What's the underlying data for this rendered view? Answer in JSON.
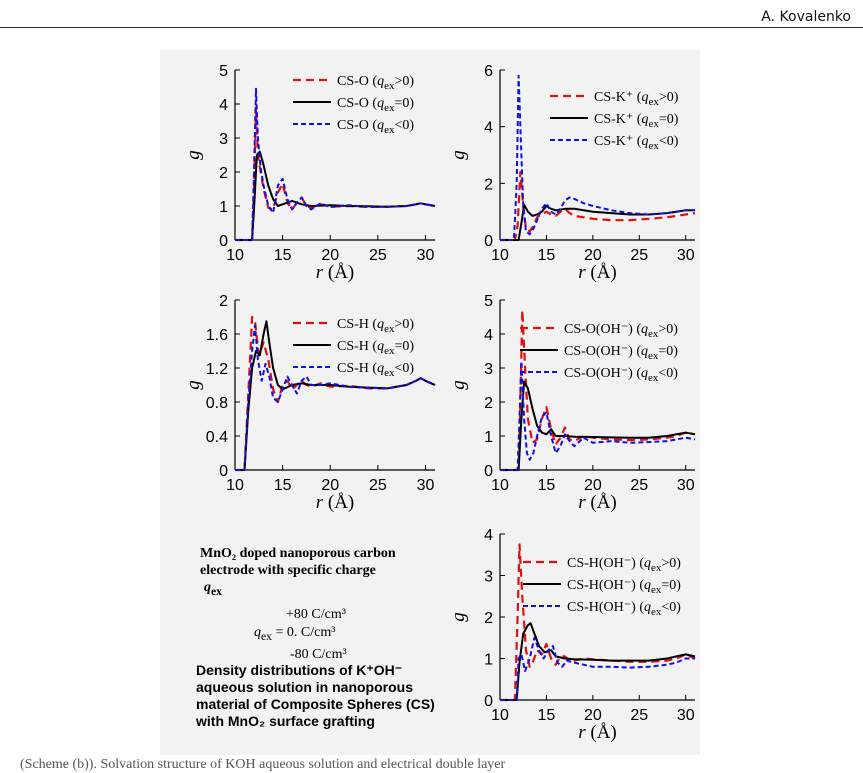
{
  "header": {
    "author": "A. Kovalenko"
  },
  "note": {
    "title_line1": "MnO₂ doped nanoporous carbon",
    "title_line2": "electrode with specific charge",
    "q_symbol": "q",
    "q_sub": "ex",
    "val_pos": "+80 C/cm³",
    "val_zero": "0. C/cm³",
    "val_neg": "-80 C/cm³",
    "q_eq": "=",
    "desc_line1": "Density distributions of K⁺OH⁻",
    "desc_line2": "aqueous solution in nanoporous",
    "desc_line3": "material of Composite Spheres (CS)",
    "desc_line4": "with MnO₂ surface grafting"
  },
  "caption": "(Scheme (b)). Solvation structure of KOH aqueous solution and electrical double layer",
  "colors": {
    "pos": "#e01010",
    "zero": "#000000",
    "neg": "#1010e0",
    "frame_bg": "#f2f2f2"
  },
  "chart_data": [
    {
      "type": "line",
      "xlabel": "r (Å)",
      "ylabel": "g",
      "xlim": [
        10,
        31
      ],
      "ylim": [
        0,
        5
      ],
      "xticks": [
        10,
        15,
        20,
        25,
        30
      ],
      "yticks": [
        0,
        1,
        2,
        3,
        4,
        5
      ],
      "series": [
        {
          "name": "CS-O (qex>0)",
          "label_main": "CS-O (",
          "label_q": "q",
          "label_sub": "ex",
          "label_end": ">0)",
          "style": "pos",
          "x": [
            10,
            11.8,
            12.0,
            12.2,
            12.4,
            12.7,
            13,
            13.5,
            14,
            14.5,
            15,
            15.5,
            16,
            16.5,
            17,
            17.5,
            18,
            19,
            20,
            22,
            24,
            26,
            28,
            29,
            29.5,
            30,
            31
          ],
          "y": [
            0,
            0,
            1.5,
            3.9,
            2.5,
            2.0,
            1.5,
            0.95,
            0.9,
            1.4,
            1.65,
            1.1,
            0.9,
            1.1,
            1.25,
            1.0,
            0.95,
            1.05,
            0.98,
            1.0,
            0.97,
            0.98,
            1.0,
            1.05,
            1.08,
            1.05,
            1.0
          ]
        },
        {
          "name": "CS-O (qex=0)",
          "label_main": "CS-O (",
          "label_q": "q",
          "label_sub": "ex",
          "label_end": "=0)",
          "style": "zero",
          "x": [
            10,
            11.8,
            12.0,
            12.3,
            12.6,
            13,
            13.5,
            14,
            14.5,
            15,
            16,
            17,
            18,
            20,
            22,
            24,
            26,
            28,
            29,
            29.5,
            30,
            31
          ],
          "y": [
            0,
            0,
            0.9,
            2.5,
            2.6,
            2.2,
            1.6,
            1.2,
            1.0,
            1.05,
            1.15,
            1.05,
            1.0,
            1.02,
            1.0,
            0.99,
            0.98,
            1.0,
            1.05,
            1.08,
            1.05,
            1.0
          ]
        },
        {
          "name": "CS-O (qex<0)",
          "label_main": "CS-O (",
          "label_q": "q",
          "label_sub": "ex",
          "label_end": "<0)",
          "style": "neg",
          "x": [
            10,
            11.8,
            12.0,
            12.2,
            12.4,
            12.7,
            13,
            13.5,
            14,
            14.5,
            15,
            15.5,
            16,
            16.5,
            17,
            17.5,
            18,
            19,
            20,
            22,
            24,
            26,
            28,
            29,
            29.5,
            30,
            31
          ],
          "y": [
            0,
            0,
            2.0,
            4.45,
            3.0,
            2.1,
            1.6,
            1.0,
            0.8,
            1.6,
            1.8,
            1.2,
            0.9,
            1.1,
            1.25,
            1.0,
            0.9,
            1.08,
            0.97,
            1.02,
            0.97,
            0.98,
            1.0,
            1.05,
            1.08,
            1.05,
            1.0
          ]
        }
      ]
    },
    {
      "type": "line",
      "xlabel": "r (Å)",
      "ylabel": "g",
      "xlim": [
        10,
        31
      ],
      "ylim": [
        0,
        6
      ],
      "xticks": [
        10,
        15,
        20,
        25,
        30
      ],
      "yticks": [
        0,
        2,
        4,
        6
      ],
      "series": [
        {
          "name": "CS-K⁺ (qex>0)",
          "label_main": "CS-K⁺ (",
          "label_q": "q",
          "label_sub": "ex",
          "label_end": ">0)",
          "style": "pos",
          "x": [
            10,
            11.6,
            11.9,
            12.2,
            12.5,
            12.8,
            13.2,
            13.6,
            14,
            14.5,
            15,
            15.5,
            16,
            16.5,
            17,
            17.5,
            18,
            19,
            20,
            22,
            24,
            26,
            28,
            29,
            30,
            31
          ],
          "y": [
            0,
            0,
            0.5,
            2.4,
            1.2,
            0.4,
            0.3,
            0.5,
            0.8,
            0.9,
            1.0,
            0.9,
            0.85,
            1.0,
            1.1,
            0.95,
            0.85,
            0.8,
            0.75,
            0.7,
            0.7,
            0.75,
            0.8,
            0.85,
            0.9,
            0.95
          ]
        },
        {
          "name": "CS-K⁺ (qex=0)",
          "label_main": "CS-K⁺ (",
          "label_q": "q",
          "label_sub": "ex",
          "label_end": "=0)",
          "style": "zero",
          "x": [
            10,
            12.0,
            12.3,
            12.6,
            13,
            13.5,
            14,
            14.5,
            15,
            15.5,
            16,
            17,
            18,
            20,
            22,
            24,
            26,
            28,
            29,
            30,
            31
          ],
          "y": [
            0,
            0,
            0.6,
            1.25,
            1.0,
            0.85,
            0.9,
            1.0,
            1.2,
            1.1,
            1.05,
            1.1,
            1.1,
            1.0,
            0.95,
            0.9,
            0.9,
            0.95,
            1.0,
            1.05,
            1.05
          ]
        },
        {
          "name": "CS-K⁺ (qex<0)",
          "label_main": "CS-K⁺ (",
          "label_q": "q",
          "label_sub": "ex",
          "label_end": "<0)",
          "style": "neg",
          "x": [
            10,
            11.5,
            11.8,
            12.0,
            12.2,
            12.5,
            12.8,
            13.2,
            13.6,
            14,
            14.5,
            15,
            15.5,
            16,
            16.5,
            17,
            17.5,
            18,
            19,
            20,
            22,
            24,
            26,
            28,
            29,
            30,
            31
          ],
          "y": [
            0,
            0,
            2.0,
            5.8,
            4.0,
            1.2,
            0.3,
            0.2,
            0.4,
            0.7,
            1.1,
            1.3,
            1.0,
            0.9,
            1.1,
            1.4,
            1.5,
            1.45,
            1.3,
            1.2,
            1.05,
            0.95,
            0.9,
            0.95,
            1.0,
            1.05,
            1.05
          ]
        }
      ]
    },
    {
      "type": "line",
      "xlabel": "r (Å)",
      "ylabel": "g",
      "xlim": [
        10,
        31
      ],
      "ylim": [
        0,
        2
      ],
      "xticks": [
        10,
        15,
        20,
        25,
        30
      ],
      "yticks": [
        0,
        0.4,
        0.8,
        1.2,
        1.6,
        2
      ],
      "series": [
        {
          "name": "CS-H (qex>0)",
          "label_main": "CS-H (",
          "label_q": "q",
          "label_sub": "ex",
          "label_end": ">0)",
          "style": "pos",
          "x": [
            10,
            11.0,
            11.4,
            11.8,
            12.1,
            12.5,
            13,
            13.5,
            14,
            14.5,
            15,
            15.5,
            16,
            16.5,
            17,
            17.5,
            18,
            19,
            20,
            22,
            24,
            26,
            28,
            29,
            29.5,
            30,
            31
          ],
          "y": [
            0,
            0,
            0.9,
            1.8,
            1.75,
            1.35,
            1.5,
            1.3,
            0.95,
            0.8,
            1.0,
            1.05,
            0.95,
            1.0,
            1.05,
            1.0,
            0.98,
            1.02,
            0.98,
            0.99,
            0.96,
            0.96,
            1.0,
            1.05,
            1.08,
            1.05,
            1.0
          ]
        },
        {
          "name": "CS-H (qex=0)",
          "label_main": "CS-H (",
          "label_q": "q",
          "label_sub": "ex",
          "label_end": "=0)",
          "style": "zero",
          "x": [
            10,
            11.0,
            11.4,
            11.8,
            12.2,
            12.6,
            13,
            13.3,
            13.6,
            14,
            14.5,
            15,
            16,
            17,
            18,
            20,
            22,
            24,
            26,
            28,
            29,
            29.5,
            30,
            31
          ],
          "y": [
            0,
            0,
            0.7,
            1.2,
            1.4,
            1.35,
            1.6,
            1.75,
            1.5,
            1.2,
            1.0,
            0.95,
            1.0,
            1.02,
            1.0,
            1.0,
            0.98,
            0.97,
            0.96,
            1.0,
            1.05,
            1.08,
            1.05,
            1.0
          ]
        },
        {
          "name": "CS-H (qex<0)",
          "label_main": "CS-H (",
          "label_q": "q",
          "label_sub": "ex",
          "label_end": "<0)",
          "style": "neg",
          "x": [
            10,
            11.0,
            11.4,
            11.8,
            12.1,
            12.4,
            12.8,
            13.2,
            13.6,
            14,
            14.5,
            15,
            15.5,
            16,
            16.5,
            17,
            17.5,
            18,
            19,
            20,
            22,
            24,
            26,
            28,
            29,
            29.5,
            30,
            31
          ],
          "y": [
            0,
            0,
            0.8,
            1.4,
            1.7,
            1.3,
            1.05,
            1.25,
            1.1,
            0.85,
            0.8,
            0.95,
            1.1,
            1.0,
            0.9,
            1.05,
            1.1,
            1.0,
            1.0,
            1.02,
            0.98,
            0.97,
            0.96,
            1.0,
            1.05,
            1.08,
            1.05,
            1.0
          ]
        }
      ]
    },
    {
      "type": "line",
      "xlabel": "r (Å)",
      "ylabel": "g",
      "xlim": [
        10,
        31
      ],
      "ylim": [
        0,
        5
      ],
      "xticks": [
        10,
        15,
        20,
        25,
        30
      ],
      "yticks": [
        0,
        1,
        2,
        3,
        4,
        5
      ],
      "series": [
        {
          "name": "CS-O(OH⁻) (qex>0)",
          "label_main": "CS-O(OH⁻) (",
          "label_q": "q",
          "label_sub": "ex",
          "label_end": ">0)",
          "style": "pos",
          "x": [
            10,
            12.0,
            12.2,
            12.4,
            12.7,
            13,
            13.5,
            14,
            14.5,
            15,
            15.5,
            16,
            16.5,
            17,
            17.5,
            18,
            19,
            20,
            22,
            24,
            26,
            28,
            29,
            30,
            31
          ],
          "y": [
            0,
            0,
            2.0,
            4.7,
            3.0,
            1.5,
            0.8,
            0.9,
            1.5,
            1.85,
            1.2,
            0.75,
            0.95,
            1.25,
            0.9,
            0.85,
            1.0,
            0.95,
            0.9,
            0.88,
            0.9,
            0.95,
            1.0,
            1.1,
            1.05
          ]
        },
        {
          "name": "CS-O(OH⁻) (qex=0)",
          "label_main": "CS-O(OH⁻) (",
          "label_q": "q",
          "label_sub": "ex",
          "label_end": "=0)",
          "style": "zero",
          "x": [
            10,
            12.0,
            12.3,
            12.6,
            13,
            13.5,
            14,
            14.5,
            15,
            15.5,
            16,
            17,
            18,
            20,
            22,
            24,
            26,
            28,
            29,
            30,
            31
          ],
          "y": [
            0,
            0,
            1.5,
            2.6,
            2.4,
            1.8,
            1.3,
            1.1,
            1.05,
            1.2,
            1.0,
            1.0,
            0.98,
            0.97,
            0.96,
            0.95,
            0.95,
            1.0,
            1.05,
            1.1,
            1.05
          ]
        },
        {
          "name": "CS-O(OH⁻) (qex<0)",
          "label_main": "CS-O(OH⁻) (",
          "label_q": "q",
          "label_sub": "ex",
          "label_end": "<0)",
          "style": "neg",
          "x": [
            10,
            11.9,
            12.1,
            12.3,
            12.6,
            12.9,
            13.2,
            13.6,
            14,
            14.5,
            15,
            15.5,
            16,
            16.5,
            17,
            17.5,
            18,
            19,
            20,
            22,
            24,
            26,
            28,
            29,
            30,
            31
          ],
          "y": [
            0,
            0,
            1.5,
            3.2,
            1.5,
            0.5,
            0.3,
            0.5,
            1.0,
            1.55,
            1.7,
            1.0,
            0.5,
            0.7,
            1.05,
            0.85,
            0.7,
            0.95,
            0.8,
            0.85,
            0.8,
            0.82,
            0.85,
            0.9,
            0.95,
            0.9
          ]
        }
      ]
    },
    {
      "type": "line",
      "xlabel": "r (Å)",
      "ylabel": "g",
      "xlim": [
        10,
        31
      ],
      "ylim": [
        0,
        4
      ],
      "xticks": [
        10,
        15,
        20,
        25,
        30
      ],
      "yticks": [
        0,
        1,
        2,
        3,
        4
      ],
      "series": [
        {
          "name": "CS-H(OH⁻) (qex>0)",
          "label_main": "CS-H(OH⁻) (",
          "label_q": "q",
          "label_sub": "ex",
          "label_end": ">0)",
          "style": "pos",
          "x": [
            10,
            11.6,
            11.9,
            12.1,
            12.4,
            12.8,
            13.2,
            13.6,
            14,
            14.5,
            15,
            15.5,
            16,
            16.5,
            17,
            17.5,
            18,
            19,
            20,
            22,
            24,
            26,
            28,
            29,
            30,
            31
          ],
          "y": [
            0,
            0,
            2.0,
            3.75,
            2.5,
            1.2,
            0.8,
            0.95,
            1.2,
            1.1,
            1.35,
            1.0,
            0.85,
            1.05,
            1.05,
            0.95,
            0.95,
            1.0,
            0.98,
            0.95,
            0.92,
            0.92,
            0.95,
            1.0,
            1.1,
            1.0
          ]
        },
        {
          "name": "CS-H(OH⁻) (qex=0)",
          "label_main": "CS-H(OH⁻) (",
          "label_q": "q",
          "label_sub": "ex",
          "label_end": "=0)",
          "style": "zero",
          "x": [
            10,
            11.8,
            12.1,
            12.5,
            13,
            13.3,
            13.7,
            14.2,
            14.8,
            15.5,
            16,
            17,
            18,
            20,
            22,
            24,
            26,
            28,
            29,
            30,
            31
          ],
          "y": [
            0,
            0,
            0.9,
            1.6,
            1.8,
            1.85,
            1.6,
            1.3,
            1.15,
            1.2,
            1.05,
            1.0,
            0.98,
            0.97,
            0.95,
            0.95,
            0.95,
            1.0,
            1.05,
            1.1,
            1.05
          ]
        },
        {
          "name": "CS-H(OH⁻) (qex<0)",
          "label_main": "CS-H(OH⁻) (",
          "label_q": "q",
          "label_sub": "ex",
          "label_end": "<0)",
          "style": "neg",
          "x": [
            10,
            11.8,
            12.0,
            12.3,
            12.7,
            13.2,
            13.7,
            14.2,
            14.7,
            15.2,
            15.7,
            16.2,
            16.7,
            17.2,
            18,
            19,
            20,
            22,
            24,
            26,
            28,
            29,
            30,
            31
          ],
          "y": [
            0,
            0,
            1.0,
            1.1,
            0.7,
            1.0,
            1.5,
            1.2,
            1.0,
            1.2,
            1.3,
            0.9,
            0.8,
            0.95,
            0.9,
            0.85,
            0.8,
            0.8,
            0.78,
            0.8,
            0.85,
            0.9,
            1.0,
            1.0
          ]
        }
      ]
    }
  ]
}
